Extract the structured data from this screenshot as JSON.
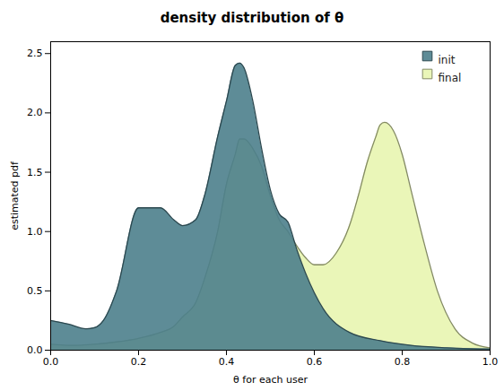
{
  "chart_data": {
    "type": "area",
    "title": "density distribution of θ",
    "xlabel": "θ for each user",
    "ylabel": "estimated pdf",
    "xlim": [
      0.0,
      1.0
    ],
    "ylim": [
      0.0,
      2.6
    ],
    "xticks": [
      0,
      0.2,
      0.4,
      0.6,
      0.8,
      1
    ],
    "yticks": [
      0,
      0.5,
      1,
      1.5,
      2,
      2.5
    ],
    "grid": false,
    "legend": "upper right",
    "series": [
      {
        "name": "init",
        "color": "#4d7f8c",
        "x": [
          0.0,
          0.04,
          0.08,
          0.1,
          0.12,
          0.15,
          0.2,
          0.25,
          0.28,
          0.3,
          0.33,
          0.35,
          0.38,
          0.4,
          0.42,
          0.43,
          0.44,
          0.46,
          0.48,
          0.5,
          0.52,
          0.54,
          0.56,
          0.58,
          0.62,
          0.68,
          0.75,
          0.82,
          0.9,
          1.0
        ],
        "values": [
          0.25,
          0.22,
          0.18,
          0.19,
          0.25,
          0.5,
          1.2,
          1.2,
          1.1,
          1.05,
          1.1,
          1.3,
          1.8,
          2.1,
          2.4,
          2.42,
          2.38,
          2.1,
          1.7,
          1.35,
          1.15,
          1.08,
          0.85,
          0.65,
          0.35,
          0.15,
          0.08,
          0.04,
          0.02,
          0.01
        ]
      },
      {
        "name": "final",
        "color": "#e8f5b0",
        "x": [
          0.0,
          0.05,
          0.1,
          0.15,
          0.2,
          0.25,
          0.28,
          0.3,
          0.33,
          0.35,
          0.38,
          0.4,
          0.42,
          0.43,
          0.44,
          0.46,
          0.48,
          0.5,
          0.52,
          0.54,
          0.56,
          0.58,
          0.6,
          0.62,
          0.65,
          0.68,
          0.7,
          0.72,
          0.74,
          0.75,
          0.76,
          0.78,
          0.8,
          0.82,
          0.85,
          0.88,
          0.92,
          0.96,
          1.0
        ],
        "values": [
          0.05,
          0.04,
          0.05,
          0.07,
          0.1,
          0.15,
          0.2,
          0.28,
          0.4,
          0.6,
          1.0,
          1.4,
          1.65,
          1.78,
          1.78,
          1.7,
          1.55,
          1.3,
          1.1,
          1.0,
          0.88,
          0.78,
          0.72,
          0.72,
          0.82,
          1.05,
          1.3,
          1.58,
          1.8,
          1.9,
          1.92,
          1.85,
          1.65,
          1.35,
          0.9,
          0.5,
          0.18,
          0.06,
          0.02
        ]
      }
    ]
  }
}
